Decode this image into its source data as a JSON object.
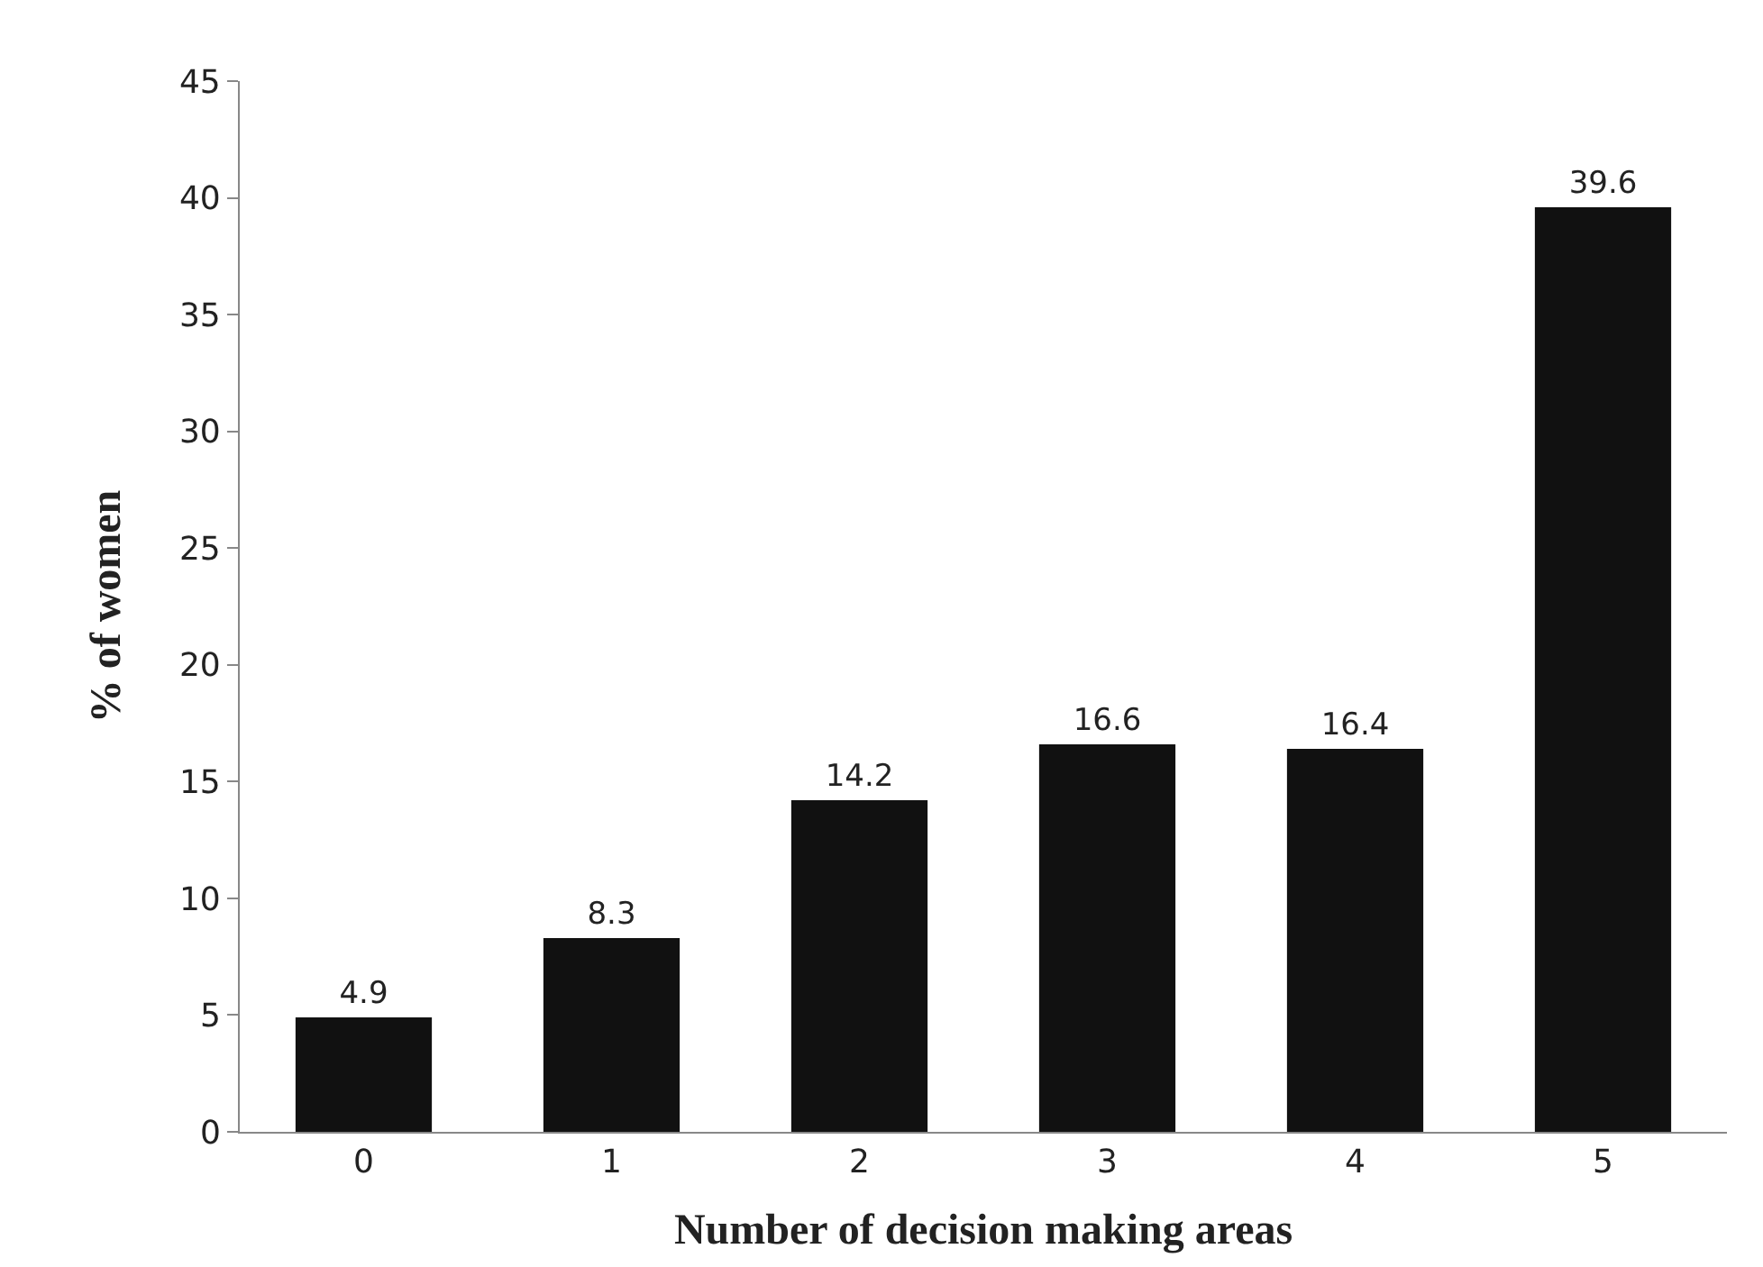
{
  "chart_data": {
    "type": "bar",
    "xlabel": "Number of decision making areas",
    "ylabel": "% of women",
    "categories": [
      "0",
      "1",
      "2",
      "3",
      "4",
      "5"
    ],
    "values": [
      4.9,
      8.3,
      14.2,
      16.6,
      16.4,
      39.6
    ],
    "color": "#111111",
    "ylim": [
      0,
      45
    ],
    "yticks": [
      0,
      5,
      10,
      15,
      20,
      25,
      30,
      35,
      40,
      45
    ],
    "legend": false,
    "data_labels": true
  }
}
